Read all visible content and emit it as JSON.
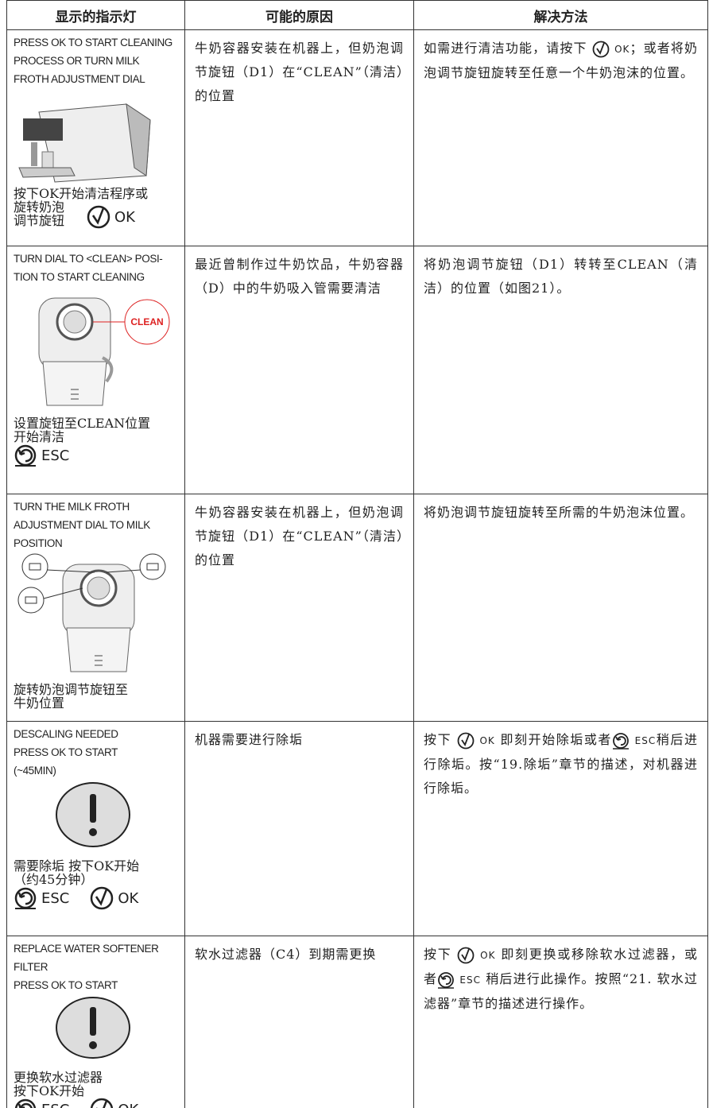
{
  "table": {
    "headers": [
      "显示的指示灯",
      "可能的原因",
      "解决方法"
    ],
    "rows": [
      {
        "indicator": [
          "PRESS OK TO START CLEANING",
          "PROCESS OR TURN MILK",
          "FROTH ADJUSTMENT DIAL"
        ],
        "caption": [
          "按下OK开始清洁程序或",
          "旋转奶泡",
          "调节旋钮"
        ],
        "buttons": [
          "OK"
        ],
        "cause": "牛奶容器安装在机器上，但奶泡调节旋钮（D1）在“CLEAN”（清洁）的位置",
        "solution": [
          "如需进行清洁功能，请按下",
          "OK",
          "；或者将奶泡调节旋钮旋转至任意一个牛奶泡沫的位置。"
        ]
      },
      {
        "indicator": [
          "TURN DIAL TO <CLEAN> POSI-",
          "TION TO START CLEANING"
        ],
        "figure_label": "CLEAN",
        "caption": [
          "设置旋钮至CLEAN位置",
          "开始清洁"
        ],
        "buttons": [
          "ESC"
        ],
        "cause": "最近曾制作过牛奶饮品，牛奶容器（D）中的牛奶吸入管需要清洁",
        "solution": [
          "将奶泡调节旋钮（D1）转转至CLEAN（清洁）的位置（如图21）。"
        ]
      },
      {
        "indicator": [
          "TURN THE MILK FROTH",
          "ADJUSTMENT DIAL TO MILK",
          "POSITION"
        ],
        "caption": [
          "旋转奶泡调节旋钮至",
          "牛奶位置"
        ],
        "cause": "牛奶容器安装在机器上，但奶泡调节旋钮（D1）在“CLEAN”（清洁）的位置",
        "solution": [
          "将奶泡调节旋钮旋转至所需的牛奶泡沫位置。"
        ]
      },
      {
        "indicator": [
          "DESCALING NEEDED",
          "PRESS OK TO START",
          "(~45MIN)"
        ],
        "caption": [
          "需要除垢 按下OK开始",
          "（约45分钟）"
        ],
        "buttons": [
          "ESC",
          "OK"
        ],
        "cause": "机器需要进行除垢",
        "solution": [
          "按下",
          "OK",
          "即刻开始除垢或者",
          "ESC",
          "稍后进行除垢。按“19.除垢”章节的描述，对机器进行除垢。"
        ]
      },
      {
        "indicator": [
          "REPLACE WATER SOFTENER",
          "FILTER",
          "PRESS OK TO START"
        ],
        "caption": [
          "更换软水过滤器",
          "按下OK开始"
        ],
        "buttons": [
          "ESC",
          "OK"
        ],
        "cause": "软水过滤器（C4）到期需更换",
        "solution": [
          "按下",
          "OK",
          "即刻更换或移除软水过滤器，或者",
          "ESC",
          "稍后进行此操作。按照“21.  软水过滤器”章节的描述进行操作。"
        ]
      }
    ]
  }
}
